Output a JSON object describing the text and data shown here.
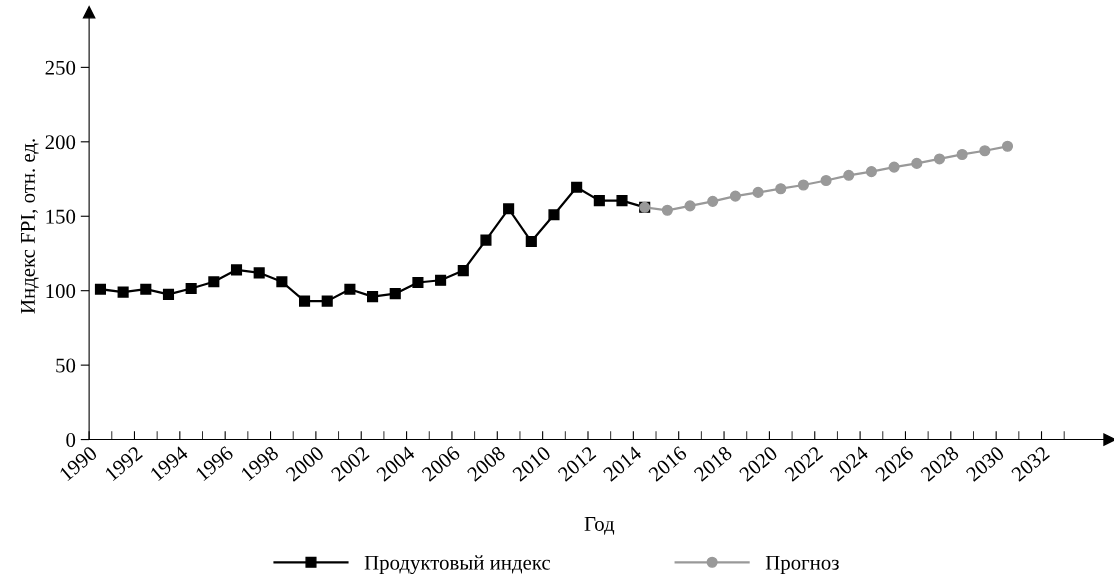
{
  "chart_data": {
    "type": "line",
    "xlabel": "Год",
    "ylabel": "Индекс FPI, отн. ед.",
    "xlim": [
      1990,
      2035
    ],
    "ylim": [
      0,
      287
    ],
    "xticks": [
      1990,
      1992,
      1994,
      1996,
      1998,
      2000,
      2002,
      2004,
      2006,
      2008,
      2010,
      2012,
      2014,
      2016,
      2018,
      2020,
      2022,
      2024,
      2026,
      2028,
      2030,
      2032
    ],
    "yticks": [
      0,
      50,
      100,
      150,
      200,
      250
    ],
    "legend": "bottom",
    "grid": false,
    "series": [
      {
        "name": "Продуктовый индекс",
        "color": "#000000",
        "marker": "square",
        "x": [
          1990.5,
          1991.5,
          1992.5,
          1993.5,
          1994.5,
          1995.5,
          1996.5,
          1997.5,
          1998.5,
          1999.5,
          2000.5,
          2001.5,
          2002.5,
          2003.5,
          2004.5,
          2005.5,
          2006.5,
          2007.5,
          2008.5,
          2009.5,
          2010.5,
          2011.5,
          2012.5,
          2013.5,
          2014.5
        ],
        "values": [
          101,
          99,
          101,
          97.5,
          101.5,
          106,
          114,
          112,
          106,
          93,
          93,
          101,
          96,
          98,
          105.5,
          107,
          113.5,
          134,
          155,
          133,
          151,
          169.5,
          160.5,
          160.5,
          156
        ]
      },
      {
        "name": "Прогноз",
        "color": "#999999",
        "marker": "circle",
        "x": [
          2014.5,
          2015.5,
          2016.5,
          2017.5,
          2018.5,
          2019.5,
          2020.5,
          2021.5,
          2022.5,
          2023.5,
          2024.5,
          2025.5,
          2026.5,
          2027.5,
          2028.5,
          2029.5,
          2030.5
        ],
        "values": [
          156,
          154,
          157,
          160,
          163.5,
          166,
          168.5,
          171,
          174,
          177.5,
          180,
          183,
          185.5,
          188.5,
          191.5,
          194,
          197
        ]
      }
    ]
  }
}
